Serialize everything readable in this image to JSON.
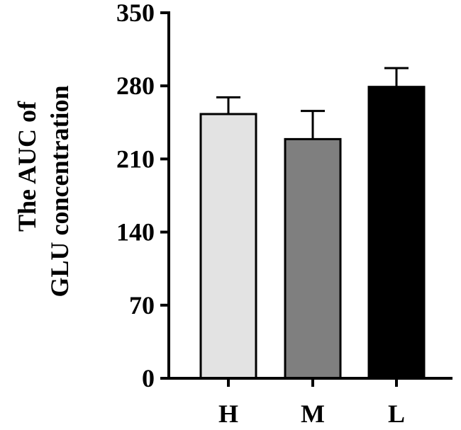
{
  "chart_data": {
    "type": "bar",
    "title": "",
    "ylabel_lines": [
      "The AUC of",
      "GLU concentration"
    ],
    "xlabel": "",
    "categories": [
      "H",
      "M",
      "L"
    ],
    "values": [
      253,
      229,
      279
    ],
    "errors": [
      16,
      27,
      18
    ],
    "ylim": [
      0,
      350
    ],
    "yticks": [
      0,
      70,
      140,
      210,
      280,
      350
    ],
    "grid": false,
    "legend": "none",
    "bar_colors": [
      "#e3e3e3",
      "#7f7f7f",
      "#000000"
    ],
    "edge_color": "#000000"
  }
}
